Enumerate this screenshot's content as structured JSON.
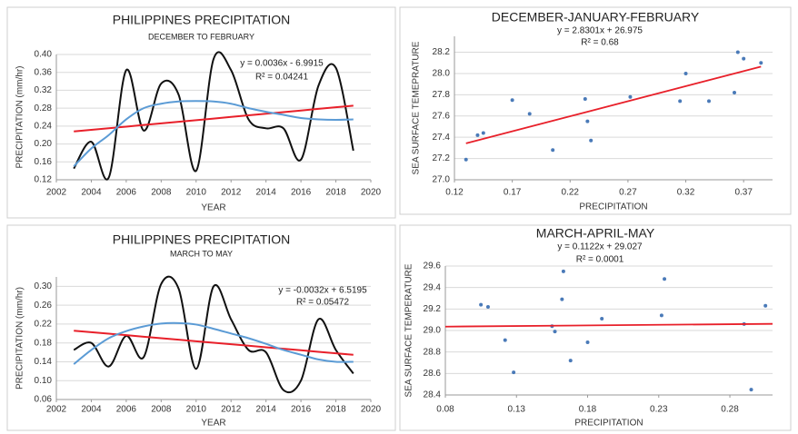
{
  "chart_data": [
    {
      "type": "line",
      "title": "PHILIPPINES PRECIPITATION",
      "subtitle": "DECEMBER TO FEBRUARY",
      "xlabel": "YEAR",
      "ylabel": "PRECIPITATION (mm/hr)",
      "annotations": [
        "y = 0.0036x - 6.9915",
        "R² = 0.04241"
      ],
      "x": [
        2003,
        2004,
        2005,
        2006,
        2007,
        2008,
        2009,
        2010,
        2011,
        2012,
        2013,
        2014,
        2015,
        2016,
        2017,
        2018,
        2019
      ],
      "series": [
        {
          "color": "#111111",
          "smooth": true,
          "values": [
            0.145,
            0.205,
            0.125,
            0.365,
            0.23,
            0.335,
            0.31,
            0.14,
            0.39,
            0.365,
            0.255,
            0.235,
            0.235,
            0.165,
            0.33,
            0.37,
            0.185
          ]
        },
        {
          "color": "#e8202a",
          "smooth": false,
          "values": [
            0.228,
            0.2316,
            0.2352,
            0.2388,
            0.2424,
            0.246,
            0.2496,
            0.2532,
            0.2568,
            0.2604,
            0.264,
            0.2676,
            0.2712,
            0.2748,
            0.2784,
            0.282,
            0.2856
          ]
        },
        {
          "color": "#5b9bd5",
          "smooth": true,
          "values": [
            0.15,
            0.19,
            0.22,
            0.255,
            0.28,
            0.29,
            0.295,
            0.296,
            0.295,
            0.29,
            0.28,
            0.272,
            0.265,
            0.258,
            0.255,
            0.254,
            0.255
          ]
        }
      ],
      "xlim": [
        2002,
        2020
      ],
      "xticks": [
        2002,
        2004,
        2006,
        2008,
        2010,
        2012,
        2014,
        2016,
        2018,
        2020
      ],
      "ylim": [
        0.12,
        0.4
      ],
      "yticks": [
        0.12,
        0.16,
        {
          "value": 0.2,
          "label": "0.20"
        },
        0.24,
        0.28,
        0.32,
        0.36,
        {
          "value": 0.4,
          "label": "0.40"
        }
      ],
      "grid": true
    },
    {
      "type": "scatter",
      "title": "DECEMBER-JANUARY-FEBRUARY",
      "xlabel": "PRECIPITATION",
      "ylabel": "SEA SURFACE TEMEPRATURE",
      "annotations": [
        "y = 2.8301x + 26.975",
        "R² = 0.68"
      ],
      "series": [
        {
          "color": "#4a7ab8",
          "style": "points",
          "x": [
            0.13,
            0.14,
            0.145,
            0.17,
            0.185,
            0.205,
            0.233,
            0.235,
            0.238,
            0.272,
            0.32,
            0.315,
            0.34,
            0.362,
            0.365,
            0.37,
            0.385
          ],
          "values": [
            27.19,
            27.42,
            27.44,
            27.75,
            27.62,
            27.28,
            27.76,
            27.55,
            27.37,
            27.78,
            28.0,
            27.74,
            27.74,
            27.82,
            28.2,
            28.14,
            28.1
          ]
        },
        {
          "color": "#e8202a",
          "style": "line",
          "x": [
            0.13,
            0.385
          ],
          "values": [
            27.343,
            28.065
          ]
        }
      ],
      "xlim": [
        0.12,
        0.395
      ],
      "xticks": [
        0.12,
        0.17,
        0.22,
        0.27,
        0.32,
        0.37
      ],
      "ylim": [
        27.0,
        28.35
      ],
      "yticks": [
        {
          "value": 27.0,
          "label": "27.0"
        },
        27.2,
        27.4,
        27.6,
        27.8,
        {
          "value": 28.0,
          "label": "28.0"
        },
        28.2
      ],
      "grid": true
    },
    {
      "type": "line",
      "title": "PHILIPPINES PRECIPITATION",
      "subtitle": "MARCH TO MAY",
      "xlabel": "YEAR",
      "ylabel": "PRECIPITATION (mm/hr)",
      "annotations": [
        "y = -0.0032x + 6.5195",
        "R² = 0.05472"
      ],
      "x": [
        2003,
        2004,
        2005,
        2006,
        2007,
        2008,
        2009,
        2010,
        2011,
        2012,
        2013,
        2014,
        2015,
        2016,
        2017,
        2018,
        2019
      ],
      "series": [
        {
          "color": "#111111",
          "smooth": true,
          "values": [
            0.165,
            0.18,
            0.13,
            0.195,
            0.15,
            0.305,
            0.295,
            0.125,
            0.3,
            0.23,
            0.165,
            0.16,
            0.08,
            0.1,
            0.23,
            0.165,
            0.115
          ]
        },
        {
          "color": "#e8202a",
          "smooth": false,
          "values": [
            0.206,
            0.2028,
            0.1996,
            0.1964,
            0.1932,
            0.19,
            0.1868,
            0.1836,
            0.1804,
            0.1772,
            0.174,
            0.1708,
            0.1676,
            0.1644,
            0.1612,
            0.158,
            0.1548
          ]
        },
        {
          "color": "#5b9bd5",
          "smooth": true,
          "values": [
            0.135,
            0.165,
            0.19,
            0.205,
            0.215,
            0.221,
            0.222,
            0.219,
            0.21,
            0.2,
            0.19,
            0.178,
            0.165,
            0.155,
            0.145,
            0.14,
            0.14
          ]
        }
      ],
      "xlim": [
        2002,
        2020
      ],
      "xticks": [
        2002,
        2004,
        2006,
        2008,
        2010,
        2012,
        2014,
        2016,
        2018,
        2020
      ],
      "ylim": [
        0.06,
        0.32
      ],
      "yticks": [
        0.06,
        {
          "value": 0.1,
          "label": "0.10"
        },
        0.14,
        0.18,
        0.22,
        0.26,
        {
          "value": 0.3,
          "label": "0.30"
        }
      ],
      "grid": true
    },
    {
      "type": "scatter",
      "title": "MARCH-APRIL-MAY",
      "xlabel": "PRECIPITATION",
      "ylabel": "SEA SURFACE TEMPERATURE",
      "annotations": [
        "y = 0.1122x + 29.027",
        "R² = 0.0001"
      ],
      "series": [
        {
          "color": "#4a7ab8",
          "style": "points",
          "x": [
            0.105,
            0.11,
            0.122,
            0.128,
            0.155,
            0.157,
            0.162,
            0.163,
            0.168,
            0.18,
            0.19,
            0.232,
            0.234,
            0.29,
            0.295,
            0.305
          ],
          "values": [
            29.24,
            29.22,
            28.91,
            28.61,
            29.04,
            28.99,
            29.29,
            29.55,
            28.72,
            28.89,
            29.11,
            29.14,
            29.48,
            29.06,
            28.45,
            29.23
          ]
        },
        {
          "color": "#e8202a",
          "style": "line",
          "x": [
            0.08,
            0.31
          ],
          "values": [
            29.036,
            29.062
          ]
        }
      ],
      "xlim": [
        0.08,
        0.31
      ],
      "xticks": [
        0.08,
        0.13,
        0.18,
        0.23,
        0.28
      ],
      "ylim": [
        28.4,
        29.6
      ],
      "yticks": [
        28.4,
        28.6,
        28.8,
        {
          "value": 29.0,
          "label": "29.0"
        },
        29.2,
        29.4,
        29.6
      ],
      "grid": true
    }
  ]
}
